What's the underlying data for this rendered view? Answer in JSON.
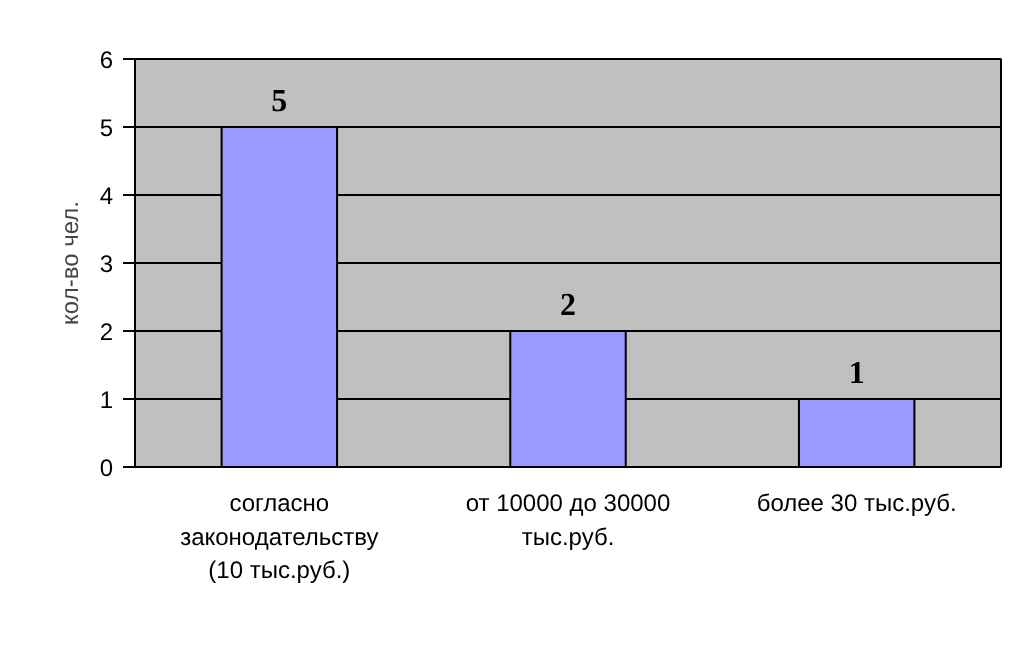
{
  "chart_data": {
    "type": "bar",
    "ylabel": "кол-во чел.",
    "categories": [
      "согласно законодательству (10 тыс.руб.)",
      "от 10000 до 30000 тыс.руб.",
      "более 30 тыс.руб."
    ],
    "values": [
      5,
      2,
      1
    ],
    "color": "#9999ff",
    "ylim": [
      0,
      6
    ],
    "yticks": [
      0,
      1,
      2,
      3,
      4,
      5,
      6
    ],
    "grid": "y",
    "data_labels": true
  }
}
